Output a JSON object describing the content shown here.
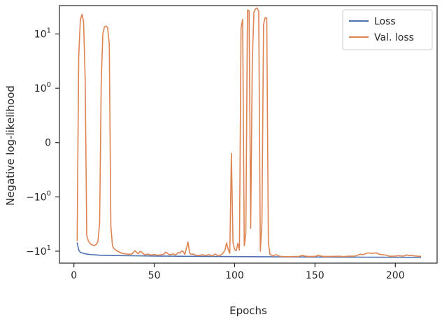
{
  "chart_data": {
    "type": "line",
    "title": "",
    "xlabel": "Epochs",
    "ylabel": "Negative log-likelihood",
    "xlim": [
      -9,
      226
    ],
    "yscale": "symlog",
    "ylim": [
      -16.6,
      33.3
    ],
    "x_ticks": [
      0,
      50,
      100,
      150,
      200
    ],
    "y_ticks": [
      {
        "value": 10,
        "mantissa": "10",
        "exp": "1",
        "neg": false
      },
      {
        "value": 1,
        "mantissa": "10",
        "exp": "0",
        "neg": false
      },
      {
        "value": 0,
        "mantissa": "0",
        "exp": "",
        "neg": false
      },
      {
        "value": -1,
        "mantissa": "10",
        "exp": "0",
        "neg": true
      },
      {
        "value": -10,
        "mantissa": "10",
        "exp": "1",
        "neg": true
      }
    ],
    "grid": false,
    "legend": {
      "position": "upper right"
    },
    "series": [
      {
        "name": "Loss",
        "color": "#4c72b0",
        "points": [
          [
            2,
            -6.9
          ],
          [
            3,
            -9.5
          ],
          [
            4,
            -10.5
          ],
          [
            6,
            -11.0
          ],
          [
            8,
            -11.3
          ],
          [
            10,
            -11.5
          ],
          [
            13,
            -11.7
          ],
          [
            16,
            -11.85
          ],
          [
            20,
            -11.95
          ],
          [
            25,
            -12.05
          ],
          [
            30,
            -12.1
          ],
          [
            40,
            -12.2
          ],
          [
            50,
            -12.3
          ],
          [
            60,
            -12.35
          ],
          [
            70,
            -12.45
          ],
          [
            80,
            -12.5
          ],
          [
            90,
            -12.55
          ],
          [
            100,
            -12.6
          ],
          [
            110,
            -12.65
          ],
          [
            120,
            -12.7
          ],
          [
            130,
            -12.75
          ],
          [
            140,
            -12.78
          ],
          [
            150,
            -12.82
          ],
          [
            160,
            -12.85
          ],
          [
            170,
            -12.88
          ],
          [
            180,
            -12.9
          ],
          [
            190,
            -12.93
          ],
          [
            200,
            -12.95
          ],
          [
            210,
            -12.97
          ],
          [
            216,
            -12.98
          ]
        ]
      },
      {
        "name": "Val. loss",
        "color": "#dd8452",
        "points": [
          [
            2,
            -6.5
          ],
          [
            3,
            4.0
          ],
          [
            4,
            18.0
          ],
          [
            5,
            23.0
          ],
          [
            6,
            17.0
          ],
          [
            7,
            1.5
          ],
          [
            8,
            -5.2
          ],
          [
            9,
            -6.5
          ],
          [
            10,
            -7.2
          ],
          [
            11,
            -7.6
          ],
          [
            12,
            -7.8
          ],
          [
            13,
            -7.8
          ],
          [
            14,
            -7.5
          ],
          [
            15,
            -6.5
          ],
          [
            16,
            -3.0
          ],
          [
            17,
            1.3
          ],
          [
            18,
            10.0
          ],
          [
            19,
            13.5
          ],
          [
            20,
            14.0
          ],
          [
            21,
            13.0
          ],
          [
            22,
            6.5
          ],
          [
            23,
            -3.5
          ],
          [
            24,
            -8.0
          ],
          [
            25,
            -9.0
          ],
          [
            26,
            -9.5
          ],
          [
            27,
            -10.0
          ],
          [
            28,
            -10.3
          ],
          [
            29,
            -10.6
          ],
          [
            30,
            -11.0
          ],
          [
            32,
            -11.2
          ],
          [
            34,
            -11.4
          ],
          [
            36,
            -11.3
          ],
          [
            37,
            -10.5
          ],
          [
            38,
            -9.8
          ],
          [
            39,
            -10.5
          ],
          [
            40,
            -11.2
          ],
          [
            41,
            -10.1
          ],
          [
            42,
            -10.3
          ],
          [
            43,
            -11.1
          ],
          [
            44,
            -11.6
          ],
          [
            46,
            -11.3
          ],
          [
            48,
            -11.8
          ],
          [
            50,
            -11.5
          ],
          [
            52,
            -11.9
          ],
          [
            54,
            -11.7
          ],
          [
            56,
            -11.4
          ],
          [
            57,
            -10.4
          ],
          [
            58,
            -10.8
          ],
          [
            59,
            -11.5
          ],
          [
            60,
            -11.6
          ],
          [
            62,
            -11.2
          ],
          [
            63,
            -11.8
          ],
          [
            64,
            -11.3
          ],
          [
            65,
            -10.6
          ],
          [
            66,
            -10.9
          ],
          [
            67,
            -9.9
          ],
          [
            68,
            -10.2
          ],
          [
            69,
            -11.5
          ],
          [
            70,
            -8.9
          ],
          [
            71,
            -6.8
          ],
          [
            72,
            -10.8
          ],
          [
            73,
            -11.5
          ],
          [
            74,
            -11.3
          ],
          [
            76,
            -11.9
          ],
          [
            78,
            -12.0
          ],
          [
            80,
            -11.6
          ],
          [
            82,
            -12.0
          ],
          [
            84,
            -11.6
          ],
          [
            86,
            -12.2
          ],
          [
            88,
            -11.3
          ],
          [
            89,
            -11.8
          ],
          [
            90,
            -12.2
          ],
          [
            92,
            -11.5
          ],
          [
            94,
            -9.7
          ],
          [
            95,
            -7.0
          ],
          [
            96,
            -9.2
          ],
          [
            97,
            -11.0
          ],
          [
            98,
            -0.2
          ],
          [
            99,
            -7.0
          ],
          [
            100,
            -9.3
          ],
          [
            101,
            -9.8
          ],
          [
            102,
            -7.2
          ],
          [
            103,
            -9.5
          ],
          [
            104,
            13.0
          ],
          [
            105,
            18.5
          ],
          [
            106,
            -8.0
          ],
          [
            107,
            -4.7
          ],
          [
            108,
            27.5
          ],
          [
            109,
            27.0
          ],
          [
            110,
            -3.8
          ],
          [
            111,
            3.0
          ],
          [
            112,
            25.0
          ],
          [
            113,
            29.0
          ],
          [
            114,
            30.0
          ],
          [
            115,
            26.0
          ],
          [
            116,
            -10.0
          ],
          [
            117,
            -3.0
          ],
          [
            118,
            15.0
          ],
          [
            119,
            20.0
          ],
          [
            120,
            19.5
          ],
          [
            121,
            -7.0
          ],
          [
            122,
            -11.5
          ],
          [
            124,
            -12.3
          ],
          [
            125,
            -11.8
          ],
          [
            126,
            -11.6
          ],
          [
            128,
            -12.4
          ],
          [
            130,
            -12.6
          ],
          [
            135,
            -12.6
          ],
          [
            140,
            -12.5
          ],
          [
            142,
            -12.0
          ],
          [
            145,
            -12.5
          ],
          [
            150,
            -12.5
          ],
          [
            152,
            -12.0
          ],
          [
            155,
            -12.5
          ],
          [
            160,
            -12.5
          ],
          [
            165,
            -12.4
          ],
          [
            168,
            -12.6
          ],
          [
            170,
            -12.4
          ],
          [
            175,
            -12.3
          ],
          [
            178,
            -11.4
          ],
          [
            180,
            -11.6
          ],
          [
            182,
            -10.9
          ],
          [
            184,
            -10.8
          ],
          [
            186,
            -11.0
          ],
          [
            188,
            -10.7
          ],
          [
            190,
            -11.4
          ],
          [
            192,
            -11.6
          ],
          [
            194,
            -11.8
          ],
          [
            196,
            -12.3
          ],
          [
            198,
            -12.4
          ],
          [
            200,
            -12.3
          ],
          [
            202,
            -12.1
          ],
          [
            204,
            -12.3
          ],
          [
            206,
            -12.2
          ],
          [
            207,
            -11.7
          ],
          [
            208,
            -12.0
          ],
          [
            210,
            -11.9
          ],
          [
            212,
            -12.2
          ],
          [
            214,
            -12.4
          ],
          [
            216,
            -12.4
          ]
        ]
      }
    ]
  }
}
